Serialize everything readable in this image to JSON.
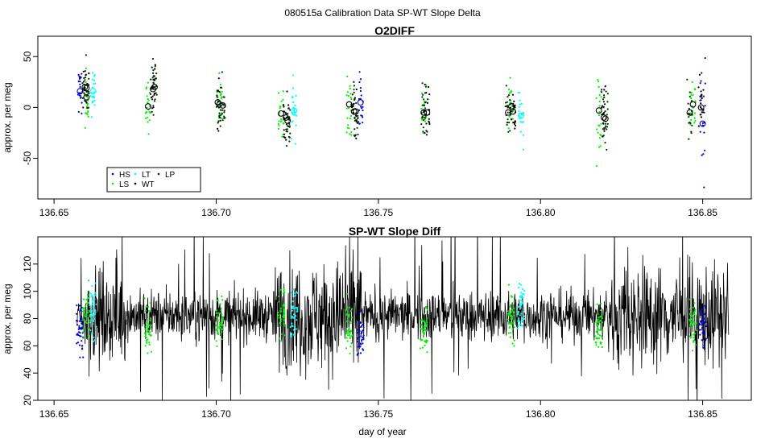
{
  "figure_title": "080515a   Calibration Data SP-WT Slope Delta",
  "colors": {
    "HS": "#0000cc",
    "LS": "#00ee00",
    "LT": "#00ffff",
    "WT": "#000000",
    "LP": "#003300",
    "line": "#000000"
  },
  "chart_data": [
    {
      "type": "scatter",
      "title": "O2DIFF",
      "xlabel": "",
      "ylabel": "approx. per meg",
      "xlim": [
        136.645,
        136.865
      ],
      "ylim": [
        -90,
        70
      ],
      "xticks": [
        "136.65",
        "136.70",
        "136.75",
        "136.80",
        "136.85"
      ],
      "yticks": [
        "-50",
        "0",
        "50"
      ],
      "legend": {
        "position": "bottom-left",
        "entries": [
          "HS",
          "LS",
          "LT",
          "WT",
          "LP"
        ]
      },
      "series": [
        {
          "name": "HS",
          "x": [
            136.658,
            136.7445,
            136.85
          ],
          "y": [
            16,
            5,
            -16
          ]
        },
        {
          "name": "LS",
          "x": [
            136.66,
            136.679,
            136.701,
            136.72,
            136.741,
            136.764,
            136.791,
            136.818,
            136.847
          ],
          "y": [
            10,
            1,
            3,
            -6,
            3,
            -5,
            1,
            -3,
            3
          ]
        },
        {
          "name": "LT",
          "x": [
            136.662,
            136.724,
            136.794
          ],
          "y": [
            16,
            -3,
            -8
          ]
        },
        {
          "name": "WT",
          "x": [
            136.6595,
            136.6805,
            136.7005,
            136.7215,
            136.7425,
            136.765,
            136.7915,
            136.8195,
            136.8495
          ],
          "y": [
            20,
            18,
            5,
            -10,
            -4,
            -5,
            -4,
            -10,
            0
          ]
        },
        {
          "name": "LP",
          "x": [
            136.66,
            136.681,
            136.702,
            136.722,
            136.743,
            136.764,
            136.79,
            136.82,
            136.846
          ],
          "y": [
            19,
            20,
            2,
            -13,
            -4,
            -5,
            -5,
            -11,
            -5
          ]
        }
      ]
    },
    {
      "type": "line",
      "title": "SP-WT Slope Diff",
      "xlabel": "day of year",
      "ylabel": "approx. per meg",
      "xlim": [
        136.645,
        136.865
      ],
      "ylim": [
        20,
        140
      ],
      "xticks": [
        "136.65",
        "136.70",
        "136.75",
        "136.80",
        "136.85"
      ],
      "yticks": [
        "20",
        "40",
        "60",
        "80",
        "100",
        "120"
      ],
      "x_range": [
        136.657,
        136.858
      ],
      "center_value": 82,
      "typical_range": [
        60,
        105
      ],
      "overlay_clusters": [
        {
          "color": "HS",
          "x": 136.658,
          "y": 72
        },
        {
          "color": "LS",
          "x": 136.66,
          "y": 82
        },
        {
          "color": "LT",
          "x": 136.662,
          "y": 86
        },
        {
          "color": "LS",
          "x": 136.679,
          "y": 72
        },
        {
          "color": "LS",
          "x": 136.701,
          "y": 80
        },
        {
          "color": "LS",
          "x": 136.72,
          "y": 84
        },
        {
          "color": "LT",
          "x": 136.724,
          "y": 86
        },
        {
          "color": "LS",
          "x": 136.741,
          "y": 74
        },
        {
          "color": "HS",
          "x": 136.7445,
          "y": 68
        },
        {
          "color": "LS",
          "x": 136.764,
          "y": 72
        },
        {
          "color": "LS",
          "x": 136.791,
          "y": 82
        },
        {
          "color": "LT",
          "x": 136.794,
          "y": 88
        },
        {
          "color": "LS",
          "x": 136.818,
          "y": 72
        },
        {
          "color": "LS",
          "x": 136.847,
          "y": 78
        },
        {
          "color": "HS",
          "x": 136.85,
          "y": 80
        }
      ]
    }
  ]
}
